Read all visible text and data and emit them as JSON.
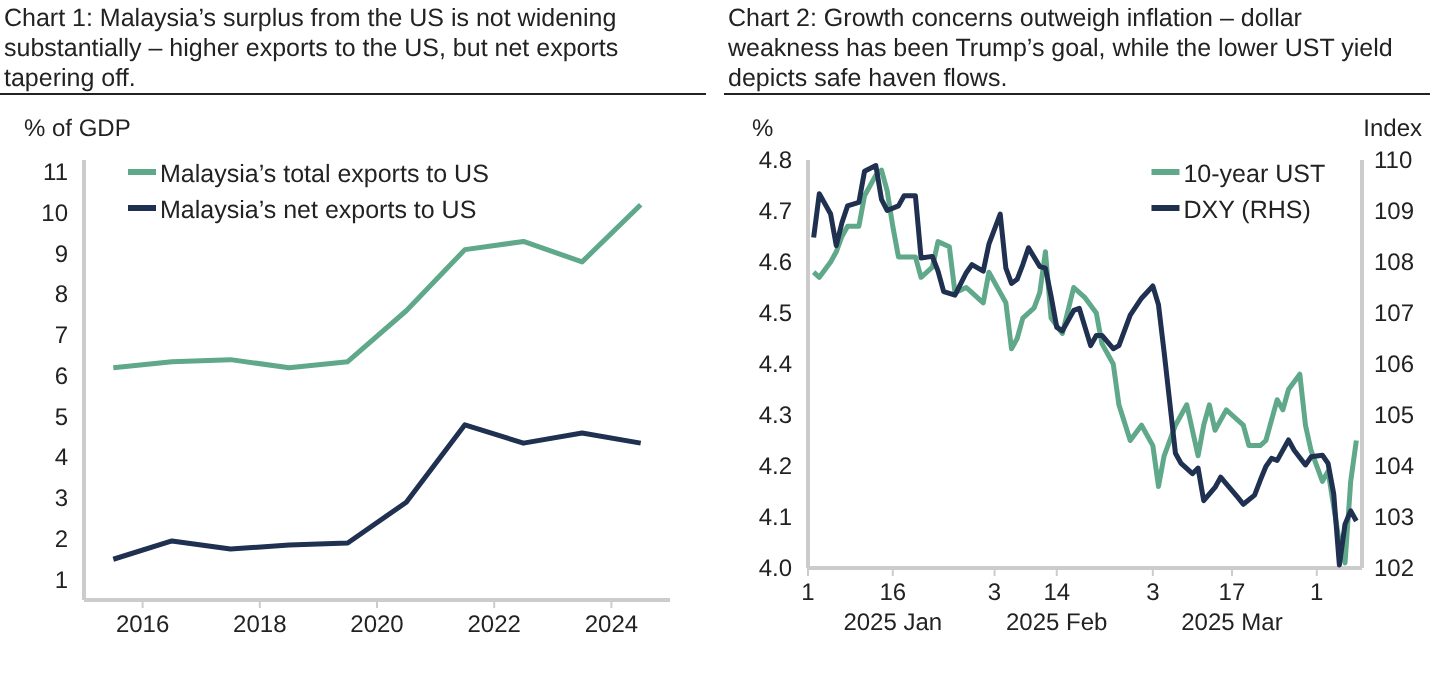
{
  "chart_data": [
    {
      "type": "line",
      "title": "Chart 1: Malaysia’s surplus from the US is not widening substantially – higher exports to the US, but net exports tapering off.",
      "ylabel": "% of GDP",
      "x": [
        2015.5,
        2016.5,
        2017.5,
        2018.5,
        2019.5,
        2020.5,
        2021.5,
        2022.5,
        2023.5,
        2024.5
      ],
      "xlim": [
        2015,
        2025
      ],
      "xticks": [
        2016,
        2018,
        2020,
        2022,
        2024
      ],
      "ylim": [
        0.5,
        11.3
      ],
      "yticks": [
        1,
        2,
        3,
        4,
        5,
        6,
        7,
        8,
        9,
        10,
        11
      ],
      "legend": "top left",
      "grid": false,
      "series": [
        {
          "name": "Malaysia’s total exports to US",
          "color": "#5fa88a",
          "values": [
            6.2,
            6.35,
            6.4,
            6.2,
            6.35,
            7.6,
            9.1,
            9.3,
            8.8,
            10.2
          ]
        },
        {
          "name": "Malaysia’s net exports to US",
          "color": "#1f3050",
          "values": [
            1.5,
            1.95,
            1.75,
            1.85,
            1.9,
            2.9,
            4.8,
            4.35,
            4.6,
            4.35
          ]
        }
      ]
    },
    {
      "type": "line",
      "title": "Chart 2: Growth concerns outweigh inflation – dollar weakness has been Trump’s goal, while the lower UST yield depicts safe haven flows.",
      "ylabel": "%",
      "y2label": "Index",
      "xlim": [
        "2025-01-01",
        "2025-04-09"
      ],
      "xticks": [
        {
          "value": "2025-01-01",
          "label": "1"
        },
        {
          "value": "2025-01-16",
          "label": "16\n2025 Jan"
        },
        {
          "value": "2025-02-03",
          "label": "3"
        },
        {
          "value": "2025-02-14",
          "label": "14\n2025 Feb"
        },
        {
          "value": "2025-03-03",
          "label": "3"
        },
        {
          "value": "2025-03-17",
          "label": "17\n2025 Mar"
        },
        {
          "value": "2025-04-01",
          "label": "1"
        }
      ],
      "ylim": [
        4.0,
        4.8
      ],
      "yticks": [
        {
          "value": 4,
          "label": "4.0"
        },
        4.1,
        4.2,
        4.3,
        4.4,
        4.5,
        4.6,
        4.7,
        4.8
      ],
      "y2lim": [
        102,
        110
      ],
      "y2ticks": [
        102,
        103,
        104,
        105,
        106,
        107,
        108,
        109,
        110
      ],
      "legend": "top right",
      "grid": false,
      "series": [
        {
          "name": "10-year UST",
          "color": "#5fa88a",
          "x": [
            "2025-01-02",
            "2025-01-03",
            "2025-01-05",
            "2025-01-06",
            "2025-01-07",
            "2025-01-08",
            "2025-01-10",
            "2025-01-11",
            "2025-01-13",
            "2025-01-14",
            "2025-01-15",
            "2025-01-16",
            "2025-01-17",
            "2025-01-19",
            "2025-01-20",
            "2025-01-21",
            "2025-01-23",
            "2025-01-24",
            "2025-01-26",
            "2025-01-27",
            "2025-01-29",
            "2025-01-30",
            "2025-02-01",
            "2025-02-02",
            "2025-02-03",
            "2025-02-05",
            "2025-02-06",
            "2025-02-07",
            "2025-02-08",
            "2025-02-10",
            "2025-02-11",
            "2025-02-12",
            "2025-02-13",
            "2025-02-15",
            "2025-02-17",
            "2025-02-19",
            "2025-02-21",
            "2025-02-22",
            "2025-02-24",
            "2025-02-25",
            "2025-02-27",
            "2025-03-01",
            "2025-03-03",
            "2025-03-04",
            "2025-03-05",
            "2025-03-07",
            "2025-03-08",
            "2025-03-09",
            "2025-03-11",
            "2025-03-12",
            "2025-03-13",
            "2025-03-14",
            "2025-03-16",
            "2025-03-17",
            "2025-03-19",
            "2025-03-20",
            "2025-03-22",
            "2025-03-23",
            "2025-03-25",
            "2025-03-26",
            "2025-03-27",
            "2025-03-29",
            "2025-03-30",
            "2025-03-31",
            "2025-04-02",
            "2025-04-03",
            "2025-04-05",
            "2025-04-06",
            "2025-04-07",
            "2025-04-08"
          ],
          "values": [
            4.58,
            4.57,
            4.6,
            4.62,
            4.65,
            4.67,
            4.67,
            4.73,
            4.77,
            4.78,
            4.74,
            4.67,
            4.61,
            4.61,
            4.61,
            4.57,
            4.59,
            4.64,
            4.63,
            4.54,
            4.55,
            4.54,
            4.52,
            4.58,
            4.56,
            4.52,
            4.43,
            4.45,
            4.49,
            4.51,
            4.54,
            4.62,
            4.49,
            4.46,
            4.55,
            4.53,
            4.5,
            4.44,
            4.4,
            4.32,
            4.25,
            4.28,
            4.24,
            4.16,
            4.22,
            4.28,
            4.3,
            4.32,
            4.22,
            4.28,
            4.32,
            4.27,
            4.31,
            4.3,
            4.28,
            4.24,
            4.24,
            4.25,
            4.33,
            4.31,
            4.35,
            4.38,
            4.28,
            4.23,
            4.17,
            4.19,
            4.05,
            4.01,
            4.17,
            4.25
          ]
        },
        {
          "name": "DXY (RHS)",
          "color": "#1f3050",
          "axis": "y2",
          "x": [
            "2025-01-02",
            "2025-01-03",
            "2025-01-05",
            "2025-01-06",
            "2025-01-07",
            "2025-01-08",
            "2025-01-10",
            "2025-01-11",
            "2025-01-13",
            "2025-01-14",
            "2025-01-15",
            "2025-01-17",
            "2025-01-18",
            "2025-01-20",
            "2025-01-21",
            "2025-01-23",
            "2025-01-24",
            "2025-01-25",
            "2025-01-27",
            "2025-01-29",
            "2025-01-30",
            "2025-02-01",
            "2025-02-02",
            "2025-02-04",
            "2025-02-05",
            "2025-02-06",
            "2025-02-07",
            "2025-02-08",
            "2025-02-09",
            "2025-02-11",
            "2025-02-12",
            "2025-02-13",
            "2025-02-14",
            "2025-02-15",
            "2025-02-17",
            "2025-02-18",
            "2025-02-20",
            "2025-02-21",
            "2025-02-22",
            "2025-02-24",
            "2025-02-25",
            "2025-02-27",
            "2025-03-01",
            "2025-03-03",
            "2025-03-04",
            "2025-03-05",
            "2025-03-07",
            "2025-03-08",
            "2025-03-10",
            "2025-03-11",
            "2025-03-12",
            "2025-03-14",
            "2025-03-15",
            "2025-03-16",
            "2025-03-18",
            "2025-03-19",
            "2025-03-21",
            "2025-03-22",
            "2025-03-23",
            "2025-03-24",
            "2025-03-25",
            "2025-03-27",
            "2025-03-28",
            "2025-03-30",
            "2025-03-31",
            "2025-04-02",
            "2025-04-03",
            "2025-04-04",
            "2025-04-05",
            "2025-04-06",
            "2025-04-07",
            "2025-04-08"
          ],
          "values": [
            108.48,
            109.34,
            108.94,
            108.32,
            108.77,
            109.1,
            109.17,
            109.78,
            109.89,
            109.23,
            109.01,
            109.1,
            109.3,
            109.3,
            108.08,
            108.11,
            107.82,
            107.42,
            107.35,
            107.79,
            107.95,
            107.82,
            108.35,
            108.94,
            107.88,
            107.58,
            107.66,
            107.95,
            108.28,
            107.91,
            107.88,
            107.33,
            106.72,
            106.65,
            107.05,
            107.09,
            106.36,
            106.56,
            106.56,
            106.3,
            106.36,
            106.96,
            107.29,
            107.53,
            107.16,
            106.23,
            104.25,
            104.05,
            103.85,
            103.96,
            103.32,
            103.58,
            103.78,
            103.65,
            103.39,
            103.25,
            103.43,
            103.72,
            103.99,
            104.15,
            104.11,
            104.51,
            104.31,
            104.02,
            104.18,
            104.21,
            104.05,
            103.45,
            102.06,
            102.86,
            103.12,
            102.92
          ]
        }
      ]
    }
  ]
}
